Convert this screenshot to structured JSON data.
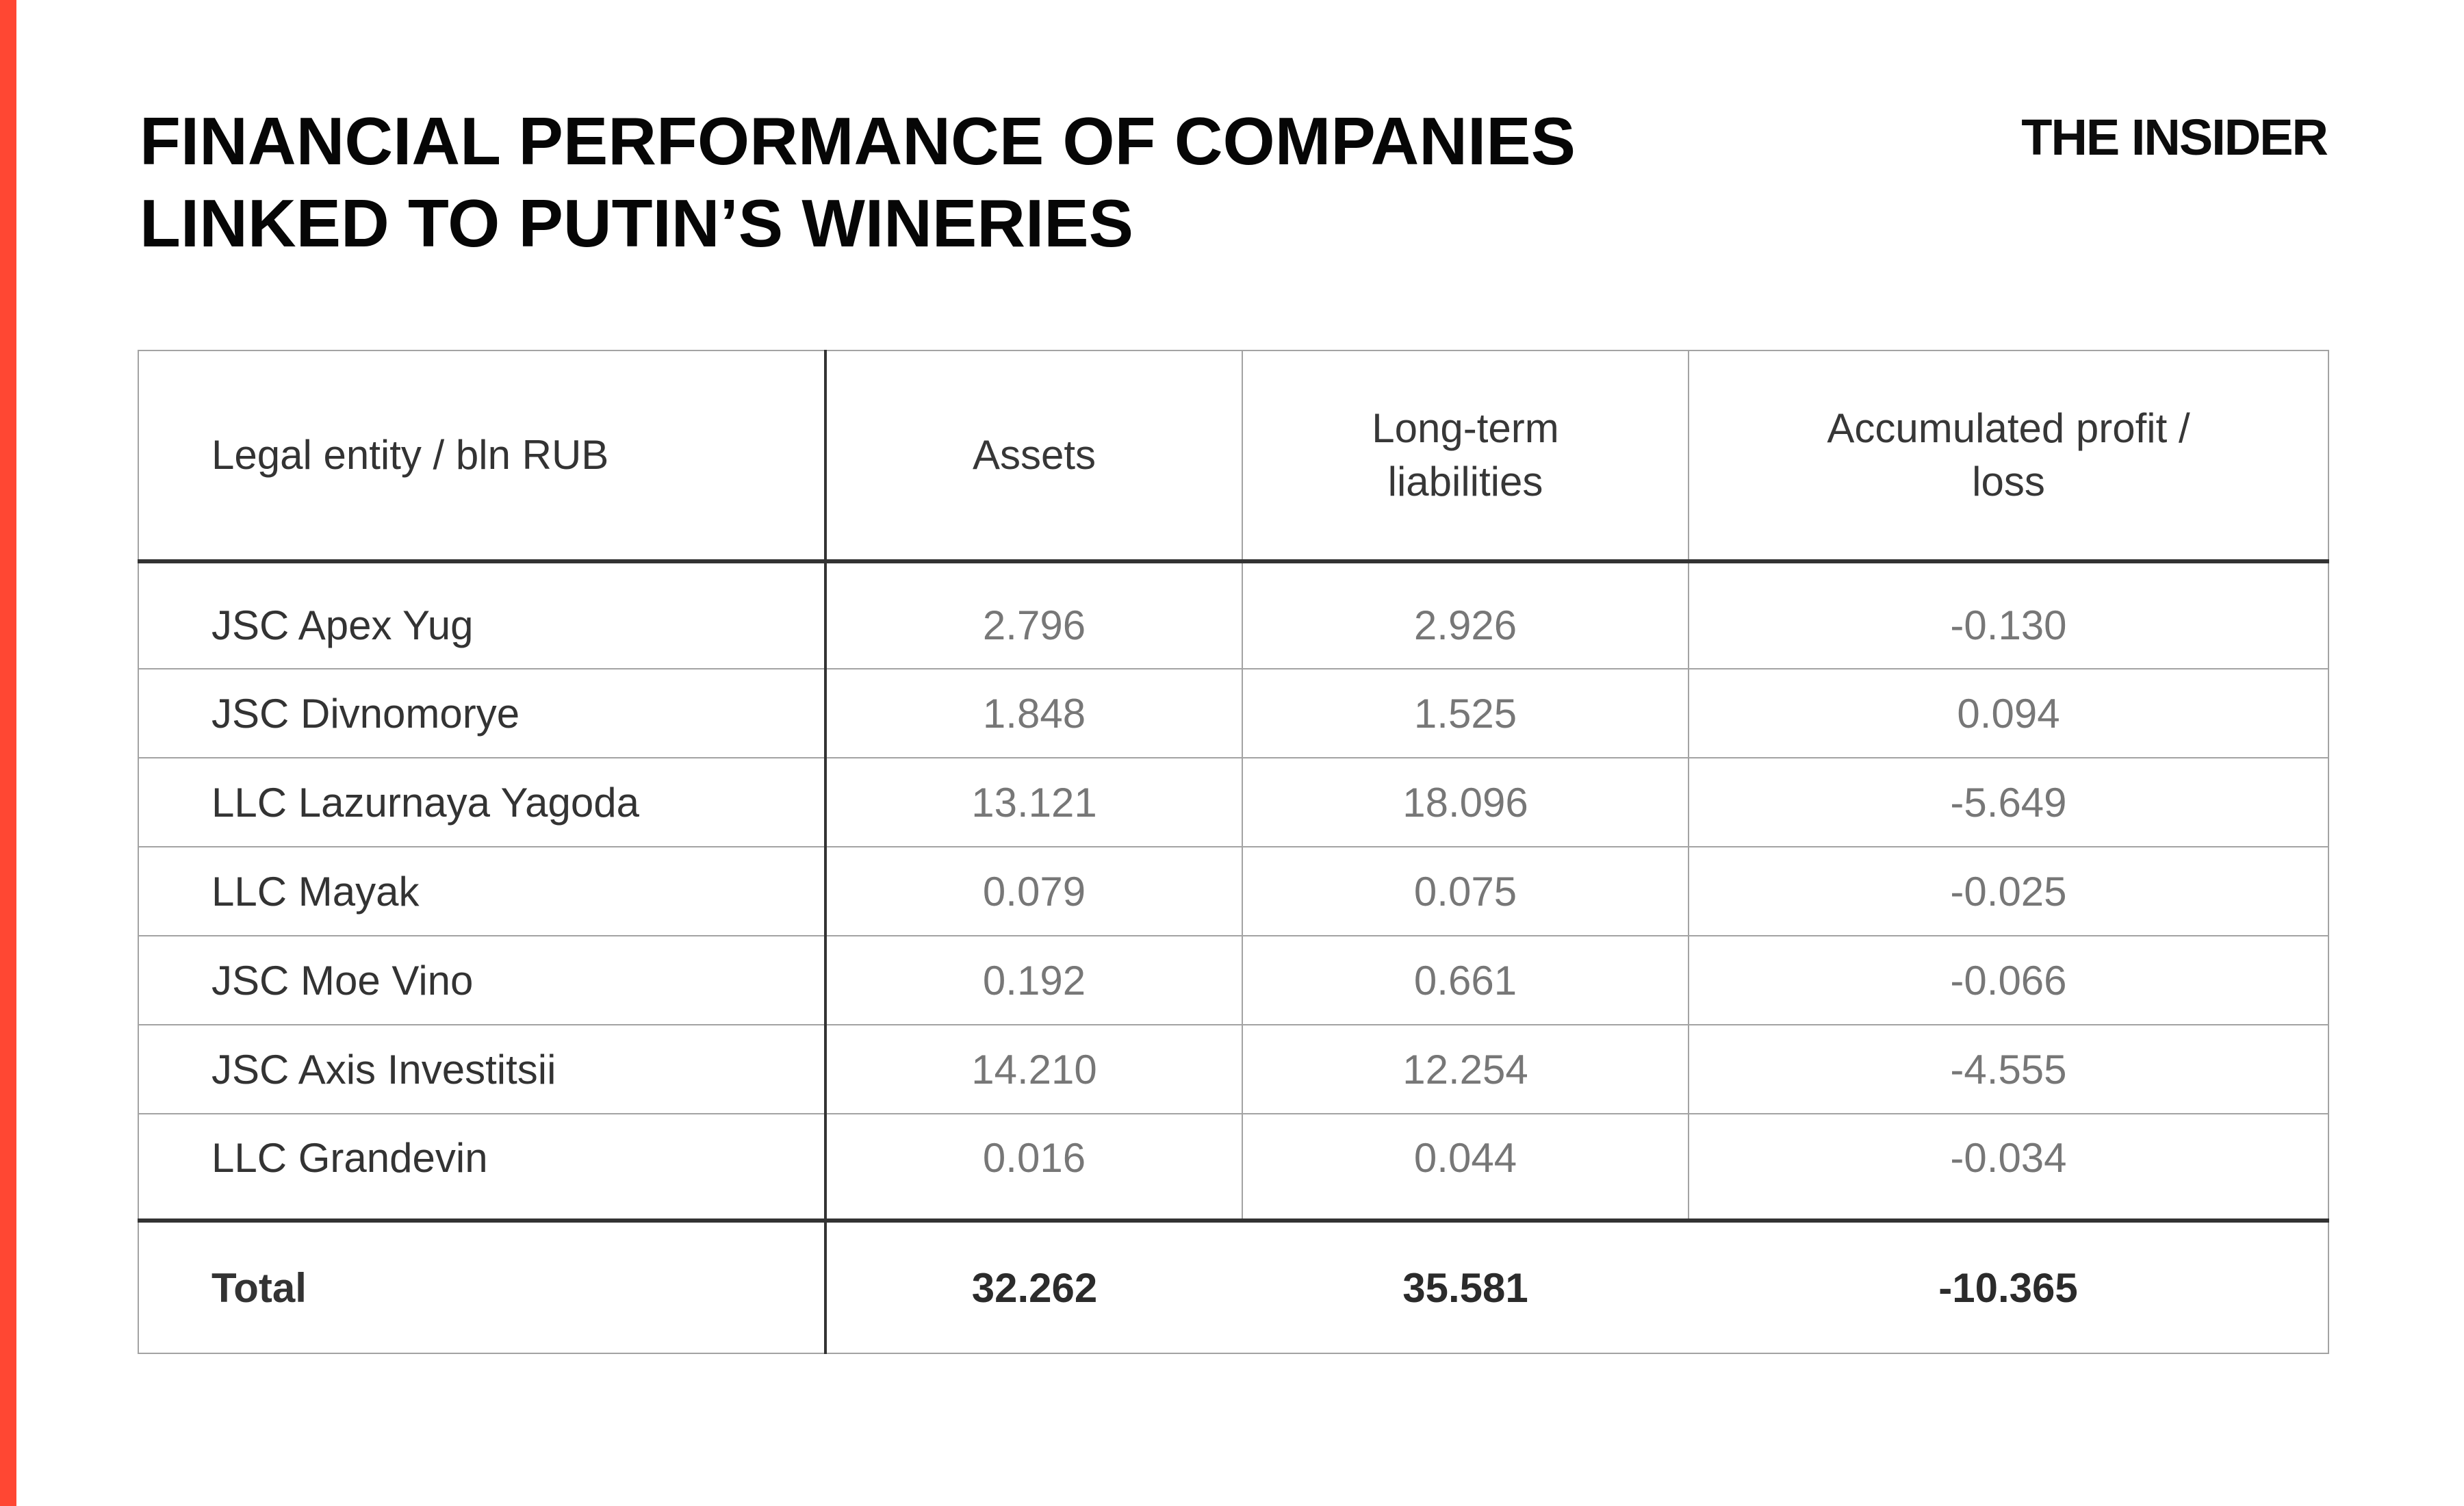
{
  "page": {
    "title_line1": "FINANCIAL PERFORMANCE OF COMPANIES",
    "title_line2": "LINKED TO PUTIN’S WINERIES",
    "brand": "THE INSIDER",
    "accent_color": "#ff4733"
  },
  "table": {
    "columns": [
      {
        "line1": "Legal entity / bln RUB",
        "line2": ""
      },
      {
        "line1": "Assets",
        "line2": ""
      },
      {
        "line1": "Long-term",
        "line2": "liabilities"
      },
      {
        "line1": "Accumulated profit /",
        "line2": "loss"
      }
    ],
    "rows": [
      {
        "name": "JSC Apex Yug",
        "assets": "2.796",
        "liabilities": "2.926",
        "profit": "-0.130"
      },
      {
        "name": "JSC Divnomorye",
        "assets": "1.848",
        "liabilities": "1.525",
        "profit": "0.094"
      },
      {
        "name": "LLC Lazurnaya Yagoda",
        "assets": "13.121",
        "liabilities": "18.096",
        "profit": "-5.649"
      },
      {
        "name": "LLC Mayak",
        "assets": "0.079",
        "liabilities": "0.075",
        "profit": "-0.025"
      },
      {
        "name": "JSC Moe Vino",
        "assets": "0.192",
        "liabilities": "0.661",
        "profit": "-0.066"
      },
      {
        "name": "JSC Axis Investitsii",
        "assets": "14.210",
        "liabilities": "12.254",
        "profit": "-4.555"
      },
      {
        "name": "LLC Grandevin",
        "assets": "0.016",
        "liabilities": "0.044",
        "profit": "-0.034"
      }
    ],
    "total": {
      "label": "Total",
      "assets": "32.262",
      "liabilities": "35.581",
      "profit": "-10.365"
    }
  },
  "chart_data": {
    "type": "table",
    "title": "FINANCIAL PERFORMANCE OF COMPANIES LINKED TO PUTIN’S WINERIES",
    "unit": "bln RUB",
    "columns": [
      "Legal entity / bln RUB",
      "Assets",
      "Long-term liabilities",
      "Accumulated profit / loss"
    ],
    "rows": [
      [
        "JSC Apex Yug",
        2.796,
        2.926,
        -0.13
      ],
      [
        "JSC Divnomorye",
        1.848,
        1.525,
        0.094
      ],
      [
        "LLC Lazurnaya Yagoda",
        13.121,
        18.096,
        -5.649
      ],
      [
        "LLC Mayak",
        0.079,
        0.075,
        -0.025
      ],
      [
        "JSC Moe Vino",
        0.192,
        0.661,
        -0.066
      ],
      [
        "JSC Axis Investitsii",
        14.21,
        12.254,
        -4.555
      ],
      [
        "LLC Grandevin",
        0.016,
        0.044,
        -0.034
      ]
    ],
    "total": [
      "Total",
      32.262,
      35.581,
      -10.365
    ]
  }
}
